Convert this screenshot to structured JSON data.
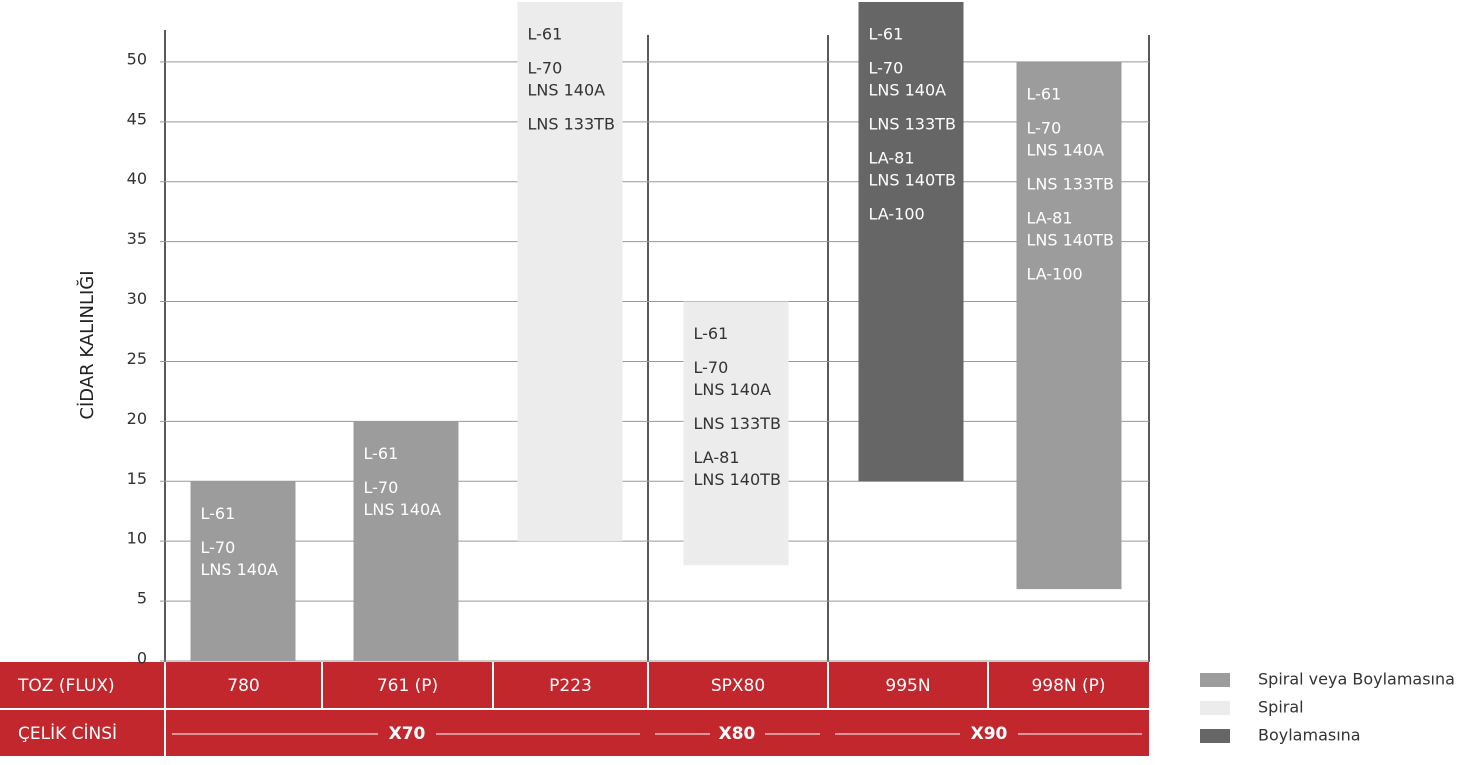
{
  "chart_data": {
    "type": "range-bar",
    "y_label": "CİDAR KALINLIĞI",
    "categories": [
      "780",
      "761 (P)",
      "P223",
      "SPX80",
      "995N",
      "998N (P)"
    ],
    "ylim": [
      0,
      55
    ],
    "yticks": [
      0,
      5,
      10,
      15,
      20,
      25,
      30,
      35,
      40,
      45,
      50
    ],
    "grid": true,
    "series": [
      {
        "name": "Spiral veya Boylamasına",
        "color": "#9c9c9c",
        "text_color": "#ffffff",
        "low": [
          0,
          0,
          null,
          null,
          null,
          6
        ],
        "high": [
          15,
          20,
          null,
          null,
          null,
          50
        ]
      },
      {
        "name": "Spiral",
        "color": "#ececec",
        "text_color": "#333333",
        "low": [
          null,
          null,
          10,
          8,
          null,
          null
        ],
        "high": [
          null,
          null,
          55,
          30,
          null,
          null
        ]
      },
      {
        "name": "Boylamasına",
        "color": "#666666",
        "text_color": "#ffffff",
        "low": [
          null,
          null,
          null,
          null,
          15,
          null
        ],
        "high": [
          null,
          null,
          null,
          null,
          55,
          null
        ]
      }
    ],
    "bar_labels": [
      [
        [
          "L-61"
        ],
        [
          "L-70",
          "LNS 140A"
        ]
      ],
      [
        [
          "L-61"
        ],
        [
          "L-70",
          "LNS 140A"
        ]
      ],
      [
        [
          "L-61"
        ],
        [
          "L-70",
          "LNS 140A"
        ],
        [
          "LNS 133TB"
        ]
      ],
      [
        [
          "L-61"
        ],
        [
          "L-70",
          "LNS 140A"
        ],
        [
          "LNS 133TB"
        ],
        [
          "LA-81",
          "LNS 140TB"
        ]
      ],
      [
        [
          "L-61"
        ],
        [
          "L-70",
          "LNS 140A"
        ],
        [
          "LNS 133TB"
        ],
        [
          "LA-81",
          "LNS 140TB"
        ],
        [
          "LA-100"
        ]
      ],
      [
        [
          "L-61"
        ],
        [
          "L-70",
          "LNS 140A"
        ],
        [
          "LNS 133TB"
        ],
        [
          "LA-81",
          "LNS 140TB"
        ],
        [
          "LA-100"
        ]
      ]
    ]
  },
  "table": {
    "row_headers": [
      "TOZ (FLUX)",
      "ÇELİK CİNSİ"
    ],
    "steel_grades": [
      "X70",
      "X80",
      "X90"
    ]
  }
}
